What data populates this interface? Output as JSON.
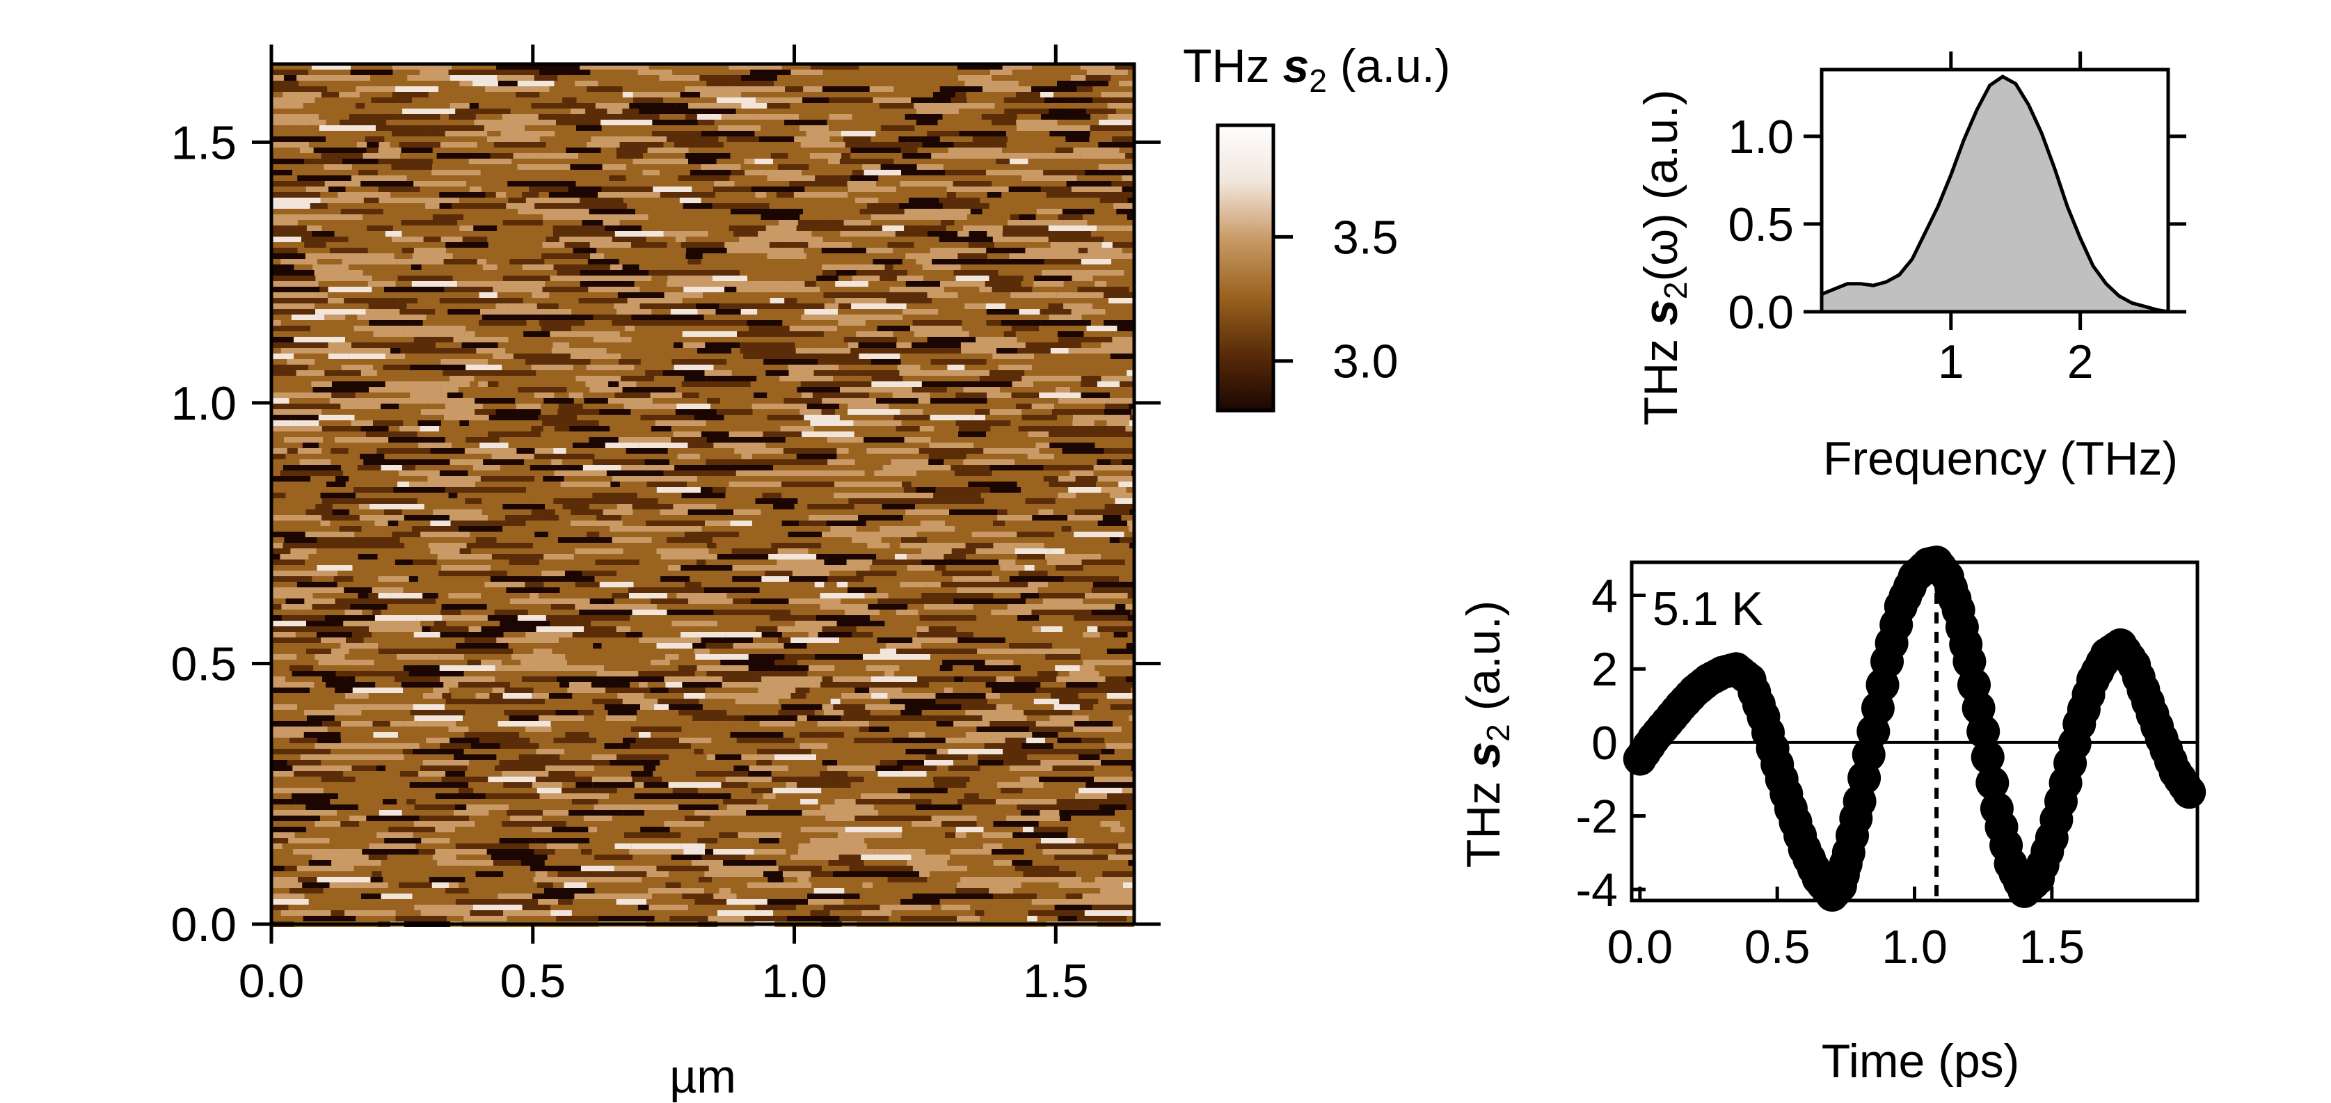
{
  "chart_data": [
    {
      "type": "heatmap",
      "xlabel": "µm",
      "x_ticks": [
        "0.0",
        "0.5",
        "1.0",
        "1.5"
      ],
      "x_tick_values": [
        0.0,
        0.5,
        1.0,
        1.5
      ],
      "y_ticks": [
        "0.0",
        "0.5",
        "1.0",
        "1.5"
      ],
      "y_tick_values": [
        0.0,
        0.5,
        1.0,
        1.5
      ],
      "xlim": [
        0.0,
        1.65
      ],
      "ylim": [
        0.0,
        1.65
      ],
      "colorbar": {
        "title_prefix": "THz ",
        "title_symbol": "s",
        "title_sub": "2",
        "title_suffix": " (a.u.)",
        "ticks": [
          "3.5",
          "3.0"
        ],
        "tick_values": [
          3.5,
          3.0
        ],
        "range": [
          2.8,
          3.95
        ],
        "colors": [
          "#1c0602",
          "#5a2c08",
          "#9a6320",
          "#c99a66",
          "#f1e5dc",
          "#ffffff"
        ]
      },
      "mean_value": 3.35,
      "noise": "horizontal-streak texture"
    },
    {
      "type": "area",
      "xlabel": "Frequency (THz)",
      "ylabel_prefix": "THz ",
      "ylabel_symbol": "s",
      "ylabel_sub": "2",
      "ylabel_suffix": "(ω) (a.u.)",
      "x_ticks": [
        "1",
        "2"
      ],
      "x_tick_values": [
        1,
        2
      ],
      "y_ticks": [
        "0.0",
        "0.5",
        "1.0"
      ],
      "y_tick_values": [
        0.0,
        0.5,
        1.0
      ],
      "xlim": [
        0.0,
        2.68
      ],
      "ylim": [
        0.0,
        1.38
      ],
      "fill_color": "#c0c0c0",
      "x": [
        0.0,
        0.1,
        0.2,
        0.3,
        0.4,
        0.5,
        0.6,
        0.7,
        0.8,
        0.9,
        1.0,
        1.1,
        1.2,
        1.3,
        1.4,
        1.5,
        1.6,
        1.7,
        1.8,
        1.9,
        2.0,
        2.1,
        2.2,
        2.3,
        2.4,
        2.5,
        2.6,
        2.68
      ],
      "y": [
        0.1,
        0.13,
        0.16,
        0.16,
        0.15,
        0.17,
        0.21,
        0.3,
        0.45,
        0.6,
        0.78,
        0.98,
        1.15,
        1.29,
        1.34,
        1.3,
        1.18,
        1.02,
        0.82,
        0.6,
        0.42,
        0.26,
        0.16,
        0.09,
        0.05,
        0.03,
        0.01,
        0.0
      ]
    },
    {
      "type": "scatter",
      "xlabel": "Time (ps)",
      "ylabel_prefix": "THz ",
      "ylabel_symbol": "s",
      "ylabel_sub": "2",
      "ylabel_suffix": " (a.u.)",
      "annotation": "5.1 K",
      "x_ticks": [
        "0.0",
        "0.5",
        "1.0",
        "1.5"
      ],
      "x_tick_values": [
        0.0,
        0.5,
        1.0,
        1.5
      ],
      "y_ticks": [
        "4",
        "2",
        "0",
        "-2",
        "-4"
      ],
      "y_tick_values": [
        4,
        2,
        0,
        -2,
        -4
      ],
      "xlim": [
        -0.03,
        2.03
      ],
      "ylim": [
        -4.3,
        4.9
      ],
      "zero_line": true,
      "marker_line_x": 1.08,
      "x": [
        0.0,
        0.05,
        0.1,
        0.15,
        0.2,
        0.25,
        0.3,
        0.35,
        0.4,
        0.45,
        0.5,
        0.55,
        0.6,
        0.65,
        0.7,
        0.73,
        0.76,
        0.8,
        0.85,
        0.9,
        0.95,
        1.0,
        1.05,
        1.08,
        1.12,
        1.16,
        1.2,
        1.25,
        1.3,
        1.35,
        1.4,
        1.45,
        1.5,
        1.55,
        1.6,
        1.65,
        1.7,
        1.75,
        1.8,
        1.85,
        1.9,
        1.95,
        2.0
      ],
      "y": [
        -0.45,
        0.1,
        0.55,
        1.0,
        1.4,
        1.7,
        1.9,
        2.0,
        1.7,
        0.7,
        -0.6,
        -1.8,
        -2.9,
        -3.7,
        -4.15,
        -3.9,
        -3.0,
        -1.6,
        0.3,
        2.2,
        3.7,
        4.5,
        4.85,
        4.9,
        4.5,
        3.6,
        2.2,
        0.3,
        -1.8,
        -3.3,
        -4.05,
        -3.7,
        -2.6,
        -1.1,
        0.5,
        1.7,
        2.4,
        2.65,
        2.1,
        1.1,
        0.1,
        -0.8,
        -1.35
      ]
    }
  ]
}
